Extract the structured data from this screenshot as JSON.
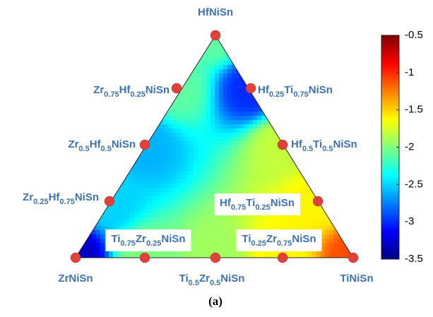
{
  "chart_data": {
    "type": "ternary-contour",
    "caption": "(a)",
    "points": [
      {
        "label": [
          "HfNiSn"
        ],
        "value": -2.1
      },
      {
        "label": [
          "Zr",
          "0.75",
          "Hf",
          "0.25",
          "NiSn"
        ],
        "value": -2.1
      },
      {
        "label": [
          "Hf",
          "0.25",
          "Ti",
          "0.75",
          "NiSn"
        ],
        "value": -3.0
      },
      {
        "label": [
          "Zr",
          "0.5",
          "Hf",
          "0.5",
          "NiSn"
        ],
        "value": -2.6
      },
      {
        "label": [
          "Hf",
          "0.5",
          "Ti",
          "0.5",
          "NiSn"
        ],
        "value": -1.8
      },
      {
        "label": [
          "Zr",
          "0.25",
          "Hf",
          "0.75",
          "NiSn"
        ],
        "value": -2.5
      },
      {
        "label": [
          "Hf",
          "0.75",
          "Ti",
          "0.25",
          "NiSn"
        ],
        "value": -1.6
      },
      {
        "label": [
          "ZrNiSn"
        ],
        "value": -3.3
      },
      {
        "label": [
          "Ti",
          "0.75",
          "Zr",
          "0.25",
          "NiSn"
        ],
        "value": -2.0
      },
      {
        "label": [
          "Ti",
          "0.5",
          "Zr",
          "0.5",
          "NiSn"
        ],
        "value": -1.9
      },
      {
        "label": [
          "Ti",
          "0.25",
          "Zr",
          "0.75",
          "NiSn"
        ],
        "value": -1.6
      },
      {
        "label": [
          "TiNiSn"
        ],
        "value": -1.1
      }
    ],
    "colormap": "jet",
    "colorbar": {
      "lim": [
        -3.5,
        -0.5
      ],
      "ticks": [
        -3.5,
        -3,
        -2.5,
        -2,
        -1.5,
        -1,
        -0.5
      ]
    }
  }
}
